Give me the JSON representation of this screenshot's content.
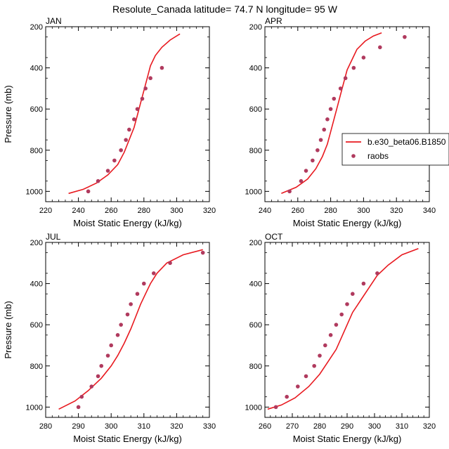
{
  "title": "Resolute_Canada  latitude= 74.7 N longitude= 95 W",
  "colors": {
    "model": "#e8191f",
    "obs": "#b03a5e"
  },
  "legend": {
    "model_label": "b.e30_beta06.B1850",
    "obs_label": "raobs",
    "placement": "right of APR panel"
  },
  "chart_data": [
    {
      "type": "line",
      "panel": "JAN",
      "xlabel": "Moist Static Energy (kJ/kg)",
      "ylabel": "Pressure (mb)",
      "xlim": [
        220,
        320
      ],
      "ylim": [
        1050,
        200
      ],
      "y_inverted": true,
      "xticks": [
        220,
        240,
        260,
        280,
        300,
        320
      ],
      "yticks": [
        200,
        400,
        600,
        800,
        1000
      ],
      "series": [
        {
          "kind": "line",
          "points": [
            [
              234,
              1010
            ],
            [
              243,
              990
            ],
            [
              251,
              960
            ],
            [
              258,
              920
            ],
            [
              264,
              870
            ],
            [
              268,
              810
            ],
            [
              271,
              750
            ],
            [
              274,
              690
            ],
            [
              276,
              630
            ],
            [
              278,
              570
            ],
            [
              280,
              510
            ],
            [
              282,
              450
            ],
            [
              284,
              390
            ],
            [
              287,
              340
            ],
            [
              291,
              300
            ],
            [
              296,
              265
            ],
            [
              302,
              235
            ]
          ]
        },
        {
          "kind": "scatter",
          "points": [
            [
              246,
              1000
            ],
            [
              252,
              950
            ],
            [
              258,
              900
            ],
            [
              262,
              850
            ],
            [
              266,
              800
            ],
            [
              269,
              750
            ],
            [
              271,
              700
            ],
            [
              274,
              650
            ],
            [
              276,
              600
            ],
            [
              279,
              550
            ],
            [
              281,
              500
            ],
            [
              284,
              450
            ],
            [
              291,
              400
            ]
          ]
        }
      ]
    },
    {
      "type": "line",
      "panel": "APR",
      "xlabel": "Moist Static Energy (kJ/kg)",
      "ylabel": "",
      "xlim": [
        240,
        340
      ],
      "ylim": [
        1050,
        200
      ],
      "y_inverted": true,
      "xticks": [
        240,
        260,
        280,
        300,
        320,
        340
      ],
      "yticks": [
        200,
        400,
        600,
        800,
        1000
      ],
      "series": [
        {
          "kind": "line",
          "points": [
            [
              250,
              1010
            ],
            [
              259,
              980
            ],
            [
              266,
              940
            ],
            [
              271,
              890
            ],
            [
              275,
              830
            ],
            [
              278,
              770
            ],
            [
              280,
              710
            ],
            [
              282,
              650
            ],
            [
              284,
              590
            ],
            [
              286,
              530
            ],
            [
              288,
              470
            ],
            [
              290,
              410
            ],
            [
              293,
              360
            ],
            [
              296,
              310
            ],
            [
              301,
              270
            ],
            [
              306,
              245
            ],
            [
              311,
              230
            ]
          ]
        },
        {
          "kind": "scatter",
          "points": [
            [
              255,
              1000
            ],
            [
              262,
              950
            ],
            [
              265,
              900
            ],
            [
              269,
              850
            ],
            [
              272,
              800
            ],
            [
              274,
              750
            ],
            [
              276,
              700
            ],
            [
              278,
              650
            ],
            [
              280,
              600
            ],
            [
              282,
              550
            ],
            [
              286,
              500
            ],
            [
              289,
              450
            ],
            [
              294,
              400
            ],
            [
              300,
              350
            ],
            [
              310,
              300
            ],
            [
              325,
              250
            ]
          ]
        }
      ]
    },
    {
      "type": "line",
      "panel": "JUL",
      "xlabel": "Moist Static Energy (kJ/kg)",
      "ylabel": "Pressure (mb)",
      "xlim": [
        280,
        330
      ],
      "ylim": [
        1050,
        200
      ],
      "y_inverted": true,
      "xticks": [
        280,
        290,
        300,
        310,
        320,
        330
      ],
      "yticks": [
        200,
        400,
        600,
        800,
        1000
      ],
      "series": [
        {
          "kind": "line",
          "points": [
            [
              284,
              1010
            ],
            [
              289,
              970
            ],
            [
              293,
              920
            ],
            [
              297,
              860
            ],
            [
              300,
              800
            ],
            [
              302,
              750
            ],
            [
              304,
              690
            ],
            [
              306,
              620
            ],
            [
              307.5,
              560
            ],
            [
              309,
              500
            ],
            [
              310.5,
              450
            ],
            [
              312,
              400
            ],
            [
              314,
              350
            ],
            [
              317,
              300
            ],
            [
              322,
              260
            ],
            [
              328,
              235
            ]
          ]
        },
        {
          "kind": "scatter",
          "points": [
            [
              290,
              1000
            ],
            [
              291,
              950
            ],
            [
              294,
              900
            ],
            [
              296,
              850
            ],
            [
              297,
              800
            ],
            [
              299,
              750
            ],
            [
              300,
              700
            ],
            [
              302,
              650
            ],
            [
              303,
              600
            ],
            [
              305,
              550
            ],
            [
              306,
              500
            ],
            [
              308,
              450
            ],
            [
              310,
              400
            ],
            [
              313,
              350
            ],
            [
              318,
              300
            ],
            [
              328,
              250
            ]
          ]
        }
      ]
    },
    {
      "type": "line",
      "panel": "OCT",
      "xlabel": "Moist Static Energy (kJ/kg)",
      "ylabel": "",
      "xlim": [
        260,
        320
      ],
      "ylim": [
        1050,
        200
      ],
      "y_inverted": true,
      "xticks": [
        260,
        270,
        280,
        290,
        300,
        310,
        320
      ],
      "yticks": [
        200,
        400,
        600,
        800,
        1000
      ],
      "series": [
        {
          "kind": "line",
          "points": [
            [
              261,
              1010
            ],
            [
              266,
              990
            ],
            [
              271,
              955
            ],
            [
              276,
              900
            ],
            [
              280,
              840
            ],
            [
              283,
              780
            ],
            [
              286,
              720
            ],
            [
              288,
              660
            ],
            [
              290,
              600
            ],
            [
              292,
              540
            ],
            [
              295,
              480
            ],
            [
              298,
              420
            ],
            [
              301,
              360
            ],
            [
              305,
              310
            ],
            [
              310,
              260
            ],
            [
              316,
              230
            ]
          ]
        },
        {
          "kind": "scatter",
          "points": [
            [
              264,
              1000
            ],
            [
              268,
              950
            ],
            [
              272,
              900
            ],
            [
              275,
              850
            ],
            [
              278,
              800
            ],
            [
              280,
              750
            ],
            [
              282,
              700
            ],
            [
              284,
              650
            ],
            [
              286,
              600
            ],
            [
              288,
              550
            ],
            [
              290,
              500
            ],
            [
              292,
              450
            ],
            [
              296,
              400
            ],
            [
              301,
              350
            ]
          ]
        }
      ]
    }
  ]
}
